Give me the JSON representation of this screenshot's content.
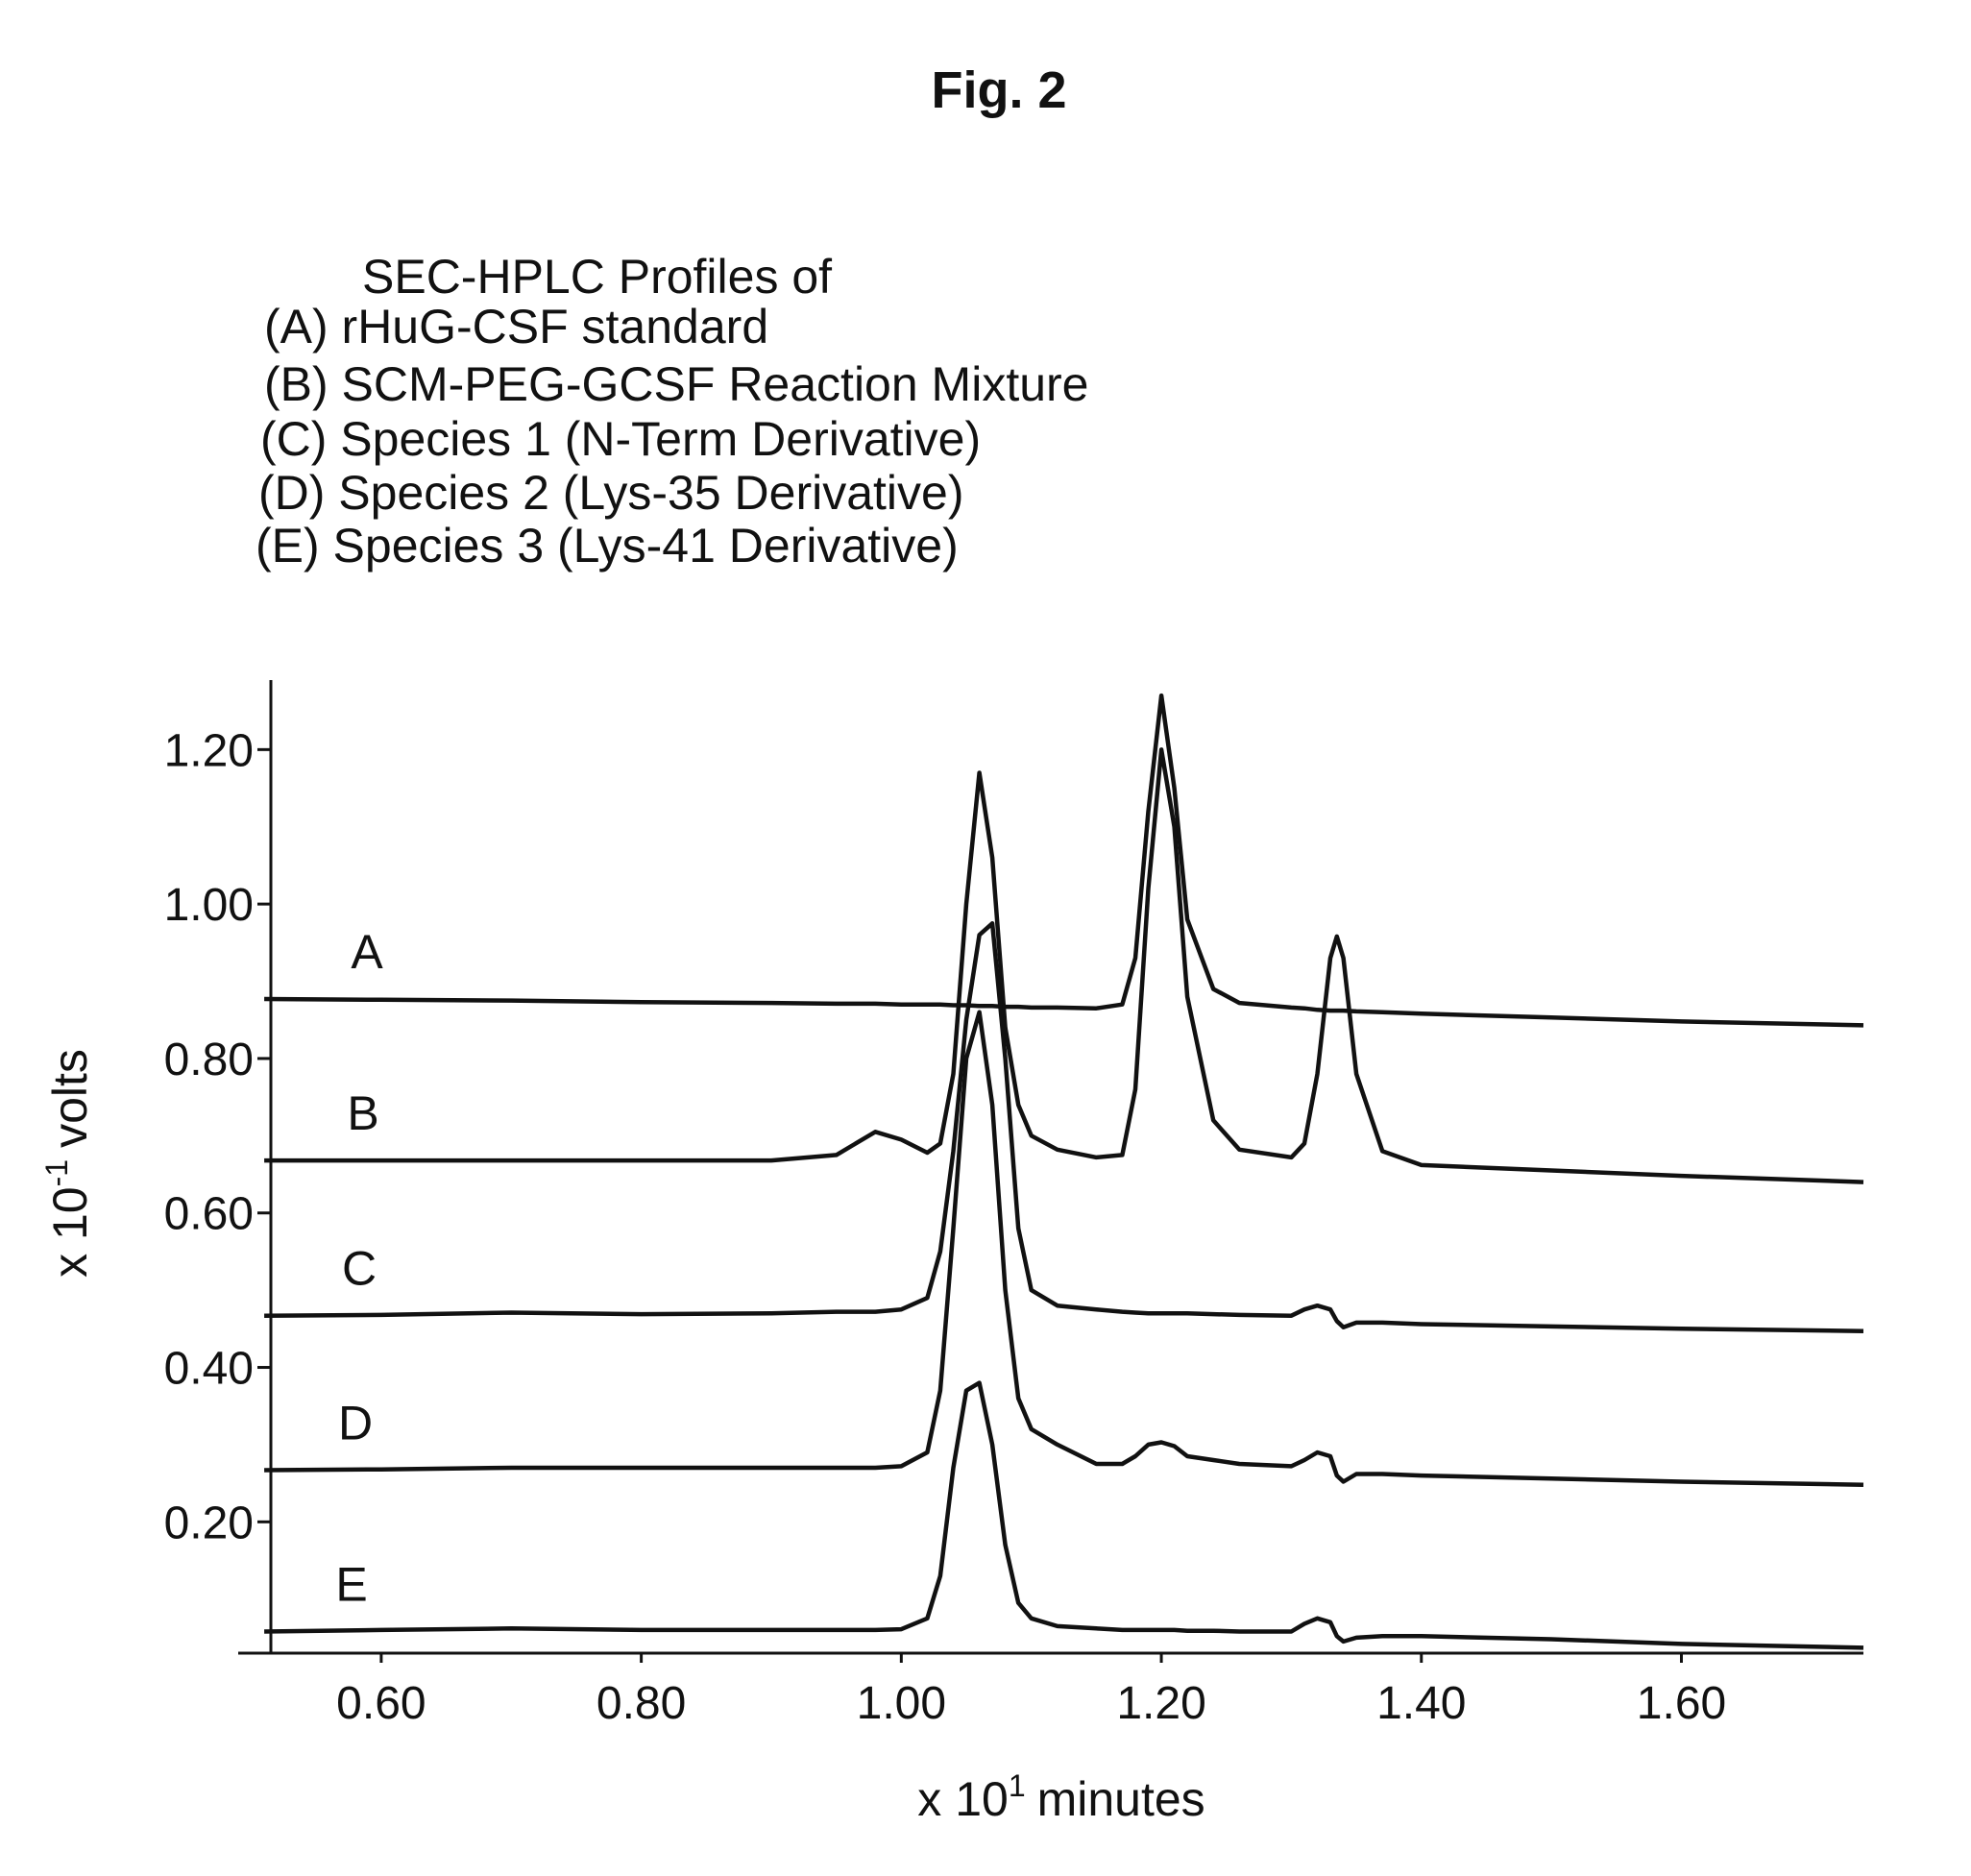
{
  "chart_data": {
    "type": "line",
    "title": "Fig. 2",
    "description_title": "SEC-HPLC Profiles of",
    "descriptions": [
      "(A) rHuG-CSF standard",
      "(B) SCM-PEG-GCSF Reaction Mixture",
      "(C) Species 1 (N-Term Derivative)",
      "(D) Species 2 (Lys-35 Derivative)",
      "(E) Species 3 (Lys-41 Derivative)"
    ],
    "xlabel": [
      "x 10",
      "1",
      "minutes"
    ],
    "ylabel": [
      "x 10",
      "-1",
      "volts"
    ],
    "xlim": [
      0.49,
      1.74
    ],
    "ylim": [
      0.03,
      1.29
    ],
    "xticks": [
      {
        "value": 0.6,
        "label": "0.60"
      },
      {
        "value": 0.8,
        "label": "0.80"
      },
      {
        "value": 1.0,
        "label": "1.00"
      },
      {
        "value": 1.2,
        "label": "1.20"
      },
      {
        "value": 1.4,
        "label": "1.40"
      },
      {
        "value": 1.6,
        "label": "1.60"
      }
    ],
    "yticks": [
      {
        "value": 0.2,
        "label": "0.20"
      },
      {
        "value": 0.4,
        "label": "0.40"
      },
      {
        "value": 0.6,
        "label": "0.60"
      },
      {
        "value": 0.8,
        "label": "0.80"
      },
      {
        "value": 1.0,
        "label": "1.00"
      },
      {
        "value": 1.2,
        "label": "1.20"
      }
    ],
    "x": [
      0.51,
      0.6,
      0.7,
      0.8,
      0.9,
      0.95,
      0.98,
      1.0,
      1.02,
      1.03,
      1.04,
      1.05,
      1.06,
      1.07,
      1.08,
      1.09,
      1.1,
      1.12,
      1.15,
      1.17,
      1.18,
      1.19,
      1.2,
      1.21,
      1.22,
      1.24,
      1.26,
      1.3,
      1.31,
      1.32,
      1.33,
      1.335,
      1.34,
      1.35,
      1.37,
      1.4,
      1.5,
      1.6,
      1.74
    ],
    "series": [
      {
        "name": "A",
        "color": "#111111",
        "values": [
          0.877,
          0.876,
          0.875,
          0.873,
          0.872,
          0.871,
          0.871,
          0.87,
          0.87,
          0.87,
          0.869,
          0.869,
          0.868,
          0.868,
          0.867,
          0.867,
          0.866,
          0.866,
          0.865,
          0.87,
          0.93,
          1.12,
          1.27,
          1.15,
          0.98,
          0.89,
          0.872,
          0.866,
          0.865,
          0.863,
          0.862,
          0.862,
          0.862,
          0.861,
          0.86,
          0.858,
          0.853,
          0.848,
          0.843
        ]
      },
      {
        "name": "B",
        "color": "#111111",
        "values": [
          0.668,
          0.668,
          0.668,
          0.668,
          0.668,
          0.675,
          0.705,
          0.695,
          0.678,
          0.69,
          0.78,
          1.0,
          1.17,
          1.06,
          0.84,
          0.74,
          0.7,
          0.682,
          0.672,
          0.675,
          0.76,
          1.02,
          1.2,
          1.1,
          0.88,
          0.72,
          0.682,
          0.672,
          0.69,
          0.78,
          0.93,
          0.958,
          0.93,
          0.78,
          0.68,
          0.662,
          0.655,
          0.648,
          0.64
        ]
      },
      {
        "name": "C",
        "color": "#111111",
        "values": [
          0.467,
          0.468,
          0.471,
          0.469,
          0.47,
          0.472,
          0.472,
          0.475,
          0.49,
          0.55,
          0.68,
          0.85,
          0.96,
          0.975,
          0.8,
          0.58,
          0.5,
          0.48,
          0.475,
          0.472,
          0.471,
          0.47,
          0.47,
          0.47,
          0.47,
          0.469,
          0.468,
          0.467,
          0.475,
          0.48,
          0.475,
          0.46,
          0.452,
          0.458,
          0.458,
          0.456,
          0.453,
          0.45,
          0.447
        ]
      },
      {
        "name": "D",
        "color": "#111111",
        "values": [
          0.267,
          0.268,
          0.27,
          0.27,
          0.27,
          0.27,
          0.27,
          0.272,
          0.29,
          0.37,
          0.58,
          0.8,
          0.86,
          0.74,
          0.5,
          0.36,
          0.32,
          0.3,
          0.275,
          0.275,
          0.285,
          0.3,
          0.303,
          0.298,
          0.285,
          0.28,
          0.275,
          0.272,
          0.28,
          0.29,
          0.285,
          0.26,
          0.252,
          0.262,
          0.262,
          0.26,
          0.256,
          0.252,
          0.248
        ]
      },
      {
        "name": "E",
        "color": "#111111",
        "values": [
          0.058,
          0.06,
          0.062,
          0.06,
          0.06,
          0.06,
          0.06,
          0.061,
          0.075,
          0.13,
          0.27,
          0.37,
          0.38,
          0.3,
          0.17,
          0.095,
          0.075,
          0.065,
          0.062,
          0.06,
          0.06,
          0.06,
          0.06,
          0.06,
          0.059,
          0.059,
          0.058,
          0.058,
          0.068,
          0.075,
          0.07,
          0.052,
          0.045,
          0.05,
          0.052,
          0.052,
          0.048,
          0.042,
          0.037
        ]
      }
    ]
  }
}
